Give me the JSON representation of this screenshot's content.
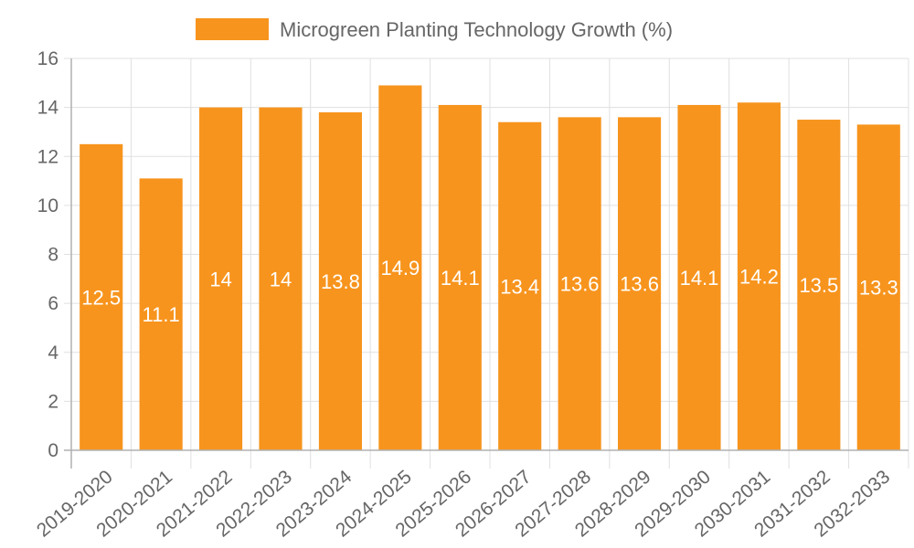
{
  "chart_data": {
    "type": "bar",
    "title": "",
    "legend": {
      "entries": [
        {
          "label": "Microgreen Planting Technology Growth (%)",
          "color": "#f7941d"
        }
      ],
      "position": "top-center"
    },
    "categories": [
      "2019-2020",
      "2020-2021",
      "2021-2022",
      "2022-2023",
      "2023-2024",
      "2024-2025",
      "2025-2026",
      "2026-2027",
      "2027-2028",
      "2028-2029",
      "2029-2030",
      "2030-2031",
      "2031-2032",
      "2032-2033"
    ],
    "series": [
      {
        "name": "Microgreen Planting Technology Growth (%)",
        "color": "#f7941d",
        "values": [
          12.5,
          11.1,
          14,
          14,
          13.8,
          14.9,
          14.1,
          13.4,
          13.6,
          13.6,
          14.1,
          14.2,
          13.5,
          13.3
        ],
        "data_labels": [
          "12.5",
          "11.1",
          "14",
          "14",
          "13.8",
          "14.9",
          "14.1",
          "13.4",
          "13.6",
          "13.6",
          "14.1",
          "14.2",
          "13.5",
          "13.3"
        ]
      }
    ],
    "xlabel": "",
    "ylabel": "",
    "ylim": [
      0,
      16
    ],
    "yticks": [
      "0",
      "2",
      "4",
      "6",
      "8",
      "10",
      "12",
      "14",
      "16"
    ],
    "grid": true,
    "colors": {
      "bar": "#f7941d",
      "grid": "#e0e0e0",
      "axis": "#b0b0b0",
      "text": "#666666",
      "data_label": "#ffffff"
    }
  }
}
